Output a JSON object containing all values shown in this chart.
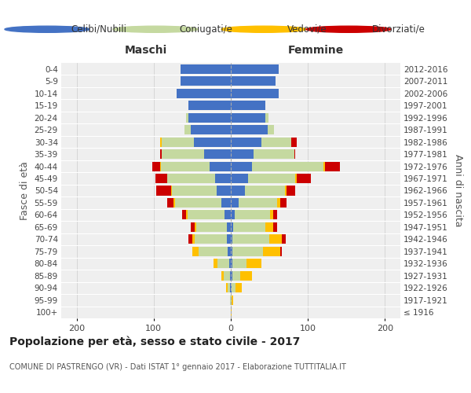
{
  "age_groups": [
    "100+",
    "95-99",
    "90-94",
    "85-89",
    "80-84",
    "75-79",
    "70-74",
    "65-69",
    "60-64",
    "55-59",
    "50-54",
    "45-49",
    "40-44",
    "35-39",
    "30-34",
    "25-29",
    "20-24",
    "15-19",
    "10-14",
    "5-9",
    "0-4"
  ],
  "birth_years": [
    "≤ 1916",
    "1917-1921",
    "1922-1926",
    "1927-1931",
    "1932-1936",
    "1937-1941",
    "1942-1946",
    "1947-1951",
    "1952-1956",
    "1957-1961",
    "1962-1966",
    "1967-1971",
    "1972-1976",
    "1977-1981",
    "1982-1986",
    "1987-1991",
    "1992-1996",
    "1997-2001",
    "2002-2006",
    "2007-2011",
    "2012-2016"
  ],
  "colors": {
    "celibi": "#4472c4",
    "coniugati": "#c5d9a0",
    "vedovi": "#ffc000",
    "divorziati": "#cc0000"
  },
  "maschi": {
    "celibi": [
      0,
      0,
      1,
      1,
      2,
      4,
      5,
      5,
      8,
      12,
      18,
      20,
      28,
      35,
      48,
      52,
      55,
      55,
      70,
      65,
      65
    ],
    "coniugati": [
      0,
      1,
      3,
      8,
      15,
      38,
      42,
      40,
      48,
      60,
      58,
      62,
      63,
      55,
      42,
      8,
      3,
      0,
      0,
      0,
      0
    ],
    "vedovi": [
      0,
      0,
      2,
      3,
      5,
      8,
      3,
      2,
      2,
      2,
      1,
      1,
      1,
      0,
      2,
      0,
      0,
      0,
      0,
      0,
      0
    ],
    "divorziati": [
      0,
      0,
      0,
      0,
      0,
      0,
      5,
      5,
      5,
      8,
      20,
      15,
      10,
      2,
      0,
      0,
      0,
      0,
      0,
      0,
      0
    ]
  },
  "femmine": {
    "celibi": [
      0,
      0,
      1,
      2,
      2,
      2,
      2,
      3,
      5,
      10,
      18,
      22,
      28,
      30,
      40,
      48,
      45,
      45,
      62,
      58,
      62
    ],
    "coniugati": [
      0,
      1,
      5,
      10,
      18,
      40,
      48,
      42,
      46,
      50,
      52,
      62,
      92,
      52,
      38,
      8,
      4,
      0,
      0,
      0,
      0
    ],
    "vedovi": [
      1,
      2,
      8,
      15,
      20,
      22,
      16,
      10,
      4,
      4,
      2,
      2,
      2,
      0,
      0,
      0,
      0,
      0,
      0,
      0,
      0
    ],
    "divorziati": [
      0,
      0,
      0,
      0,
      0,
      2,
      5,
      5,
      5,
      8,
      12,
      18,
      20,
      2,
      8,
      0,
      0,
      0,
      0,
      0,
      0
    ]
  },
  "xlim": 220,
  "title": "Popolazione per età, sesso e stato civile - 2017",
  "subtitle": "COMUNE DI PASTRENGO (VR) - Dati ISTAT 1° gennaio 2017 - Elaborazione TUTTITALIA.IT",
  "ylabel_left": "Fasce di età",
  "ylabel_right": "Anni di nascita",
  "xlabel_maschi": "Maschi",
  "xlabel_femmine": "Femmine",
  "legend_labels": [
    "Celibi/Nubili",
    "Coniugati/e",
    "Vedovi/e",
    "Divorziati/e"
  ]
}
